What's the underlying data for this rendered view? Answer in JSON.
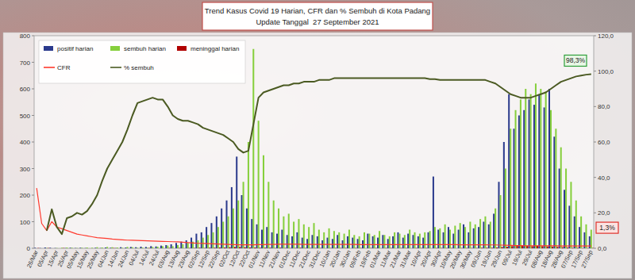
{
  "chart_data": {
    "type": "bar",
    "title": "Trend Kasus Covid 19 Harian, CFR dan % Sembuh di Kota Padang",
    "subtitle": "Update Tanggal  27 September 2021",
    "categories": [
      "26/Mar",
      null,
      "05/Apr",
      null,
      "15/Apr",
      null,
      "25/Apr",
      null,
      "05/May",
      null,
      "15/May",
      null,
      "25/May",
      null,
      "04/Jun",
      null,
      "14/Jun",
      null,
      "24/Jun",
      null,
      "04/Jul",
      null,
      "14/Jul",
      null,
      "24/Jul",
      null,
      "03/Aug",
      null,
      "13/Aug",
      null,
      "23/Aug",
      null,
      "02/Sep",
      null,
      "12/Sep",
      null,
      "22/Sep",
      null,
      "02/Oct",
      null,
      "12/Oct",
      null,
      "22/Oct",
      null,
      "01/Nov",
      null,
      "11/Nov",
      null,
      "21/Nov",
      null,
      "01/Dec",
      null,
      "11/Dec",
      null,
      "21/Dec",
      null,
      "31/Dec",
      null,
      "10/Jan",
      null,
      "20/Jan",
      null,
      "30/Jan",
      null,
      "09/Feb",
      null,
      "19/Feb",
      null,
      "01/Mar",
      null,
      "11/Mar",
      null,
      "21/Mar",
      null,
      "31/Mar",
      null,
      "10/Apr",
      null,
      "20/Apr",
      null,
      "30/Apr",
      null,
      "10/May",
      null,
      "20/May",
      null,
      "30/May",
      null,
      "09/Jun",
      null,
      "19/Jun",
      null,
      "29/Jun",
      null,
      "09/Jul",
      null,
      "19/Jul",
      null,
      "29/Jul",
      null,
      "08/Aug",
      null,
      "18/Aug",
      null,
      "28/Aug",
      null,
      "07/Sep",
      null,
      "17/Sep",
      null,
      "27/Sep"
    ],
    "series": [
      {
        "name": "positif harian",
        "type": "bar",
        "color": "#2b3a8c",
        "values": [
          2,
          1,
          3,
          2,
          1,
          0,
          1,
          2,
          1,
          2,
          1,
          0,
          2,
          1,
          3,
          2,
          1,
          4,
          3,
          5,
          4,
          6,
          5,
          8,
          7,
          10,
          12,
          15,
          20,
          25,
          30,
          40,
          55,
          60,
          80,
          95,
          120,
          150,
          180,
          230,
          345,
          200,
          150,
          110,
          90,
          70,
          80,
          60,
          55,
          70,
          50,
          45,
          60,
          40,
          35,
          50,
          45,
          30,
          40,
          35,
          50,
          30,
          45,
          40,
          35,
          30,
          55,
          45,
          40,
          50,
          35,
          45,
          60,
          40,
          55,
          50,
          45,
          40,
          60,
          270,
          70,
          60,
          80,
          55,
          70,
          90,
          60,
          75,
          80,
          100,
          90,
          130,
          250,
          400,
          580,
          450,
          500,
          520,
          560,
          540,
          580,
          530,
          600,
          420,
          300,
          220,
          160,
          120,
          80,
          60,
          45
        ]
      },
      {
        "name": "sembuh harian",
        "type": "bar",
        "color": "#86cf3c",
        "values": [
          0,
          0,
          1,
          0,
          1,
          2,
          3,
          2,
          1,
          2,
          3,
          2,
          4,
          3,
          5,
          4,
          3,
          2,
          5,
          4,
          2,
          3,
          2,
          5,
          6,
          8,
          10,
          8,
          12,
          15,
          20,
          25,
          30,
          40,
          50,
          60,
          80,
          100,
          120,
          150,
          180,
          250,
          400,
          750,
          480,
          350,
          250,
          180,
          150,
          120,
          130,
          100,
          110,
          90,
          80,
          95,
          70,
          60,
          75,
          65,
          60,
          55,
          70,
          50,
          45,
          60,
          55,
          50,
          65,
          50,
          45,
          60,
          55,
          50,
          70,
          60,
          55,
          60,
          65,
          80,
          75,
          90,
          70,
          85,
          95,
          80,
          100,
          90,
          110,
          120,
          100,
          150,
          200,
          300,
          450,
          520,
          560,
          600,
          580,
          620,
          600,
          590,
          520,
          450,
          380,
          300,
          250,
          180,
          120,
          90,
          70
        ]
      },
      {
        "name": "meninggal harian",
        "type": "bar",
        "color": "#b00000",
        "values": [
          1,
          0,
          1,
          0,
          0,
          1,
          0,
          0,
          0,
          0,
          0,
          0,
          0,
          0,
          0,
          1,
          0,
          0,
          0,
          0,
          0,
          0,
          1,
          0,
          0,
          0,
          1,
          0,
          1,
          0,
          1,
          1,
          2,
          1,
          2,
          2,
          3,
          3,
          4,
          5,
          5,
          4,
          3,
          3,
          2,
          2,
          2,
          1,
          2,
          1,
          1,
          1,
          2,
          1,
          1,
          1,
          1,
          0,
          1,
          1,
          1,
          1,
          0,
          1,
          1,
          0,
          1,
          1,
          0,
          1,
          1,
          0,
          1,
          1,
          0,
          1,
          1,
          1,
          0,
          1,
          1,
          1,
          1,
          0,
          1,
          1,
          1,
          1,
          2,
          2,
          2,
          3,
          5,
          6,
          8,
          9,
          10,
          9,
          8,
          9,
          8,
          7,
          6,
          5,
          4,
          3,
          2,
          2,
          1,
          1,
          1
        ]
      },
      {
        "name": "CFR",
        "type": "line",
        "axis": "y2",
        "color": "#ff3a2e",
        "values": [
          34,
          14,
          10,
          15,
          12,
          11,
          10,
          9,
          8,
          7.5,
          7,
          6.5,
          6,
          5.8,
          5.5,
          5.2,
          5,
          4.8,
          4.6,
          4.5,
          4.4,
          4.3,
          4.2,
          4.1,
          4,
          3.9,
          3.8,
          3.7,
          3.6,
          3.4,
          3.2,
          3,
          2.8,
          2.7,
          2.6,
          2.5,
          2.4,
          2.3,
          2.2,
          2.1,
          2,
          2,
          2,
          2,
          2.1,
          2.1,
          2.2,
          2.2,
          2.3,
          2.3,
          2.3,
          2.3,
          2.3,
          2.2,
          2.2,
          2.2,
          2.2,
          2.2,
          2.2,
          2.2,
          2.2,
          2.2,
          2.2,
          2.2,
          2.1,
          2.1,
          2.1,
          2.1,
          2.1,
          2.1,
          2.1,
          2.1,
          2.1,
          2.1,
          2.1,
          2.1,
          2.1,
          2.1,
          2.1,
          2.1,
          2.1,
          2.1,
          2.1,
          2.1,
          2,
          2,
          2,
          2,
          2,
          2,
          1.9,
          1.9,
          1.8,
          1.7,
          1.6,
          1.5,
          1.5,
          1.4,
          1.4,
          1.4,
          1.4,
          1.4,
          1.4,
          1.4,
          1.3,
          1.3,
          1.3,
          1.3,
          1.3,
          1.3,
          1.3
        ]
      },
      {
        "name": "% sembuh",
        "type": "line",
        "axis": "y2",
        "color": "#4b5a22",
        "values": [
          null,
          null,
          10,
          22,
          12,
          8,
          17,
          18,
          20,
          19,
          21,
          25,
          30,
          38,
          45,
          50,
          55,
          60,
          67,
          75,
          82,
          83,
          84,
          85,
          84,
          84,
          80,
          75,
          73,
          72,
          72,
          71,
          70,
          68,
          67,
          66,
          65,
          64,
          62,
          60,
          56,
          54,
          55,
          70,
          85,
          88,
          89,
          90,
          91,
          92,
          92,
          93,
          93,
          94,
          94,
          94,
          95,
          95,
          95,
          96,
          96,
          96,
          96,
          96,
          96,
          96,
          96,
          96,
          96,
          96,
          96,
          96,
          96,
          96,
          96,
          96,
          96,
          96,
          95.5,
          95.5,
          95,
          95,
          95,
          95,
          95,
          95,
          95,
          95,
          95,
          95,
          94,
          93,
          91,
          89,
          87,
          86,
          85,
          85,
          85,
          86,
          87,
          88,
          90,
          92,
          94,
          95,
          96,
          97,
          97.5,
          98,
          98.3
        ]
      }
    ],
    "ylim": [
      0,
      800
    ],
    "yticks": [
      0,
      100,
      200,
      300,
      400,
      500,
      600,
      700,
      800
    ],
    "y2lim": [
      0,
      120
    ],
    "y2ticks": [
      {
        "value": 0,
        "label": "0,0"
      },
      {
        "value": 20,
        "label": "20,0"
      },
      {
        "value": 40,
        "label": "40,0"
      },
      {
        "value": 60,
        "label": "60,0"
      },
      {
        "value": 80,
        "label": "80,0"
      },
      {
        "value": 100,
        "label": "100,0"
      },
      {
        "value": 120,
        "label": "120,0"
      }
    ],
    "annotations": [
      {
        "label": "98,3%",
        "value": 98.3,
        "axis": "y2",
        "color": "#2e9e3a"
      },
      {
        "label": "1,3%",
        "value": 1.3,
        "axis": "y2",
        "color": "#e0302a"
      }
    ],
    "grid": false,
    "legend": "upper left"
  }
}
